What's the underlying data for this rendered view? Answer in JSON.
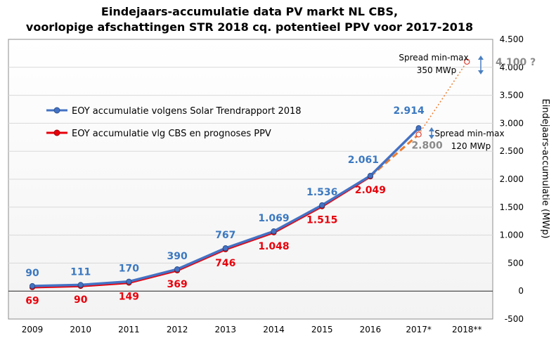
{
  "chart_data": {
    "type": "line",
    "title": [
      "Eindejaars-accumulatie  data PV markt NL CBS,",
      "voorlopige  afschattingen STR 2018 cq. potentieel PPV voor 2017-2018"
    ],
    "ylabel": "Eindejaars-accumulatie  (MWp)",
    "categories": [
      "2009",
      "2010",
      "2011",
      "2012",
      "2013",
      "2014",
      "2015",
      "2016",
      "2017*",
      "2018**"
    ],
    "ylim": [
      -500,
      4500
    ],
    "yticks": [
      -500,
      0,
      500,
      1000,
      1500,
      2000,
      2500,
      3000,
      3500,
      4000,
      4500
    ],
    "ytick_labels": [
      "-500",
      "0",
      "500",
      "1.000",
      "1.500",
      "2.000",
      "2.500",
      "3.000",
      "3.500",
      "4.000",
      "4.500"
    ],
    "grid": true,
    "legend_position": "top-left",
    "series": [
      {
        "name": "EOY accumulatie volgens Solar Trendrapport 2018",
        "color": "#4472c4",
        "values": [
          90,
          111,
          170,
          390,
          767,
          1069,
          1536,
          2061,
          2914,
          null
        ],
        "labels": [
          "90",
          "111",
          "170",
          "390",
          "767",
          "1.069",
          "1.536",
          "2.061",
          "2.914",
          ""
        ]
      },
      {
        "name": "EOY accumulatie vlg CBS en prognoses PPV",
        "color": "#e8000b",
        "values": [
          69,
          90,
          149,
          369,
          746,
          1048,
          1515,
          2049,
          null,
          null
        ],
        "labels": [
          "69",
          "90",
          "149",
          "369",
          "746",
          "1.048",
          "1.515",
          "2.049",
          "",
          ""
        ]
      }
    ],
    "projections": [
      {
        "from_x": "2016",
        "from_y": 2049,
        "to_x": "2017*",
        "to_y": 2800,
        "label": "2.800",
        "color": "#ed7d31",
        "style": "dashed"
      },
      {
        "from_x": "2017*",
        "from_y": 2800,
        "to_x": "2018**",
        "to_y": 4100,
        "label": "4.100 ?",
        "color": "#ed7d31",
        "style": "dotted"
      }
    ],
    "annotations": [
      {
        "lines": [
          "Spread min-max",
          "350 MWp"
        ],
        "at_x": "2018**"
      },
      {
        "lines": [
          "Spread min-max",
          "120 MWp"
        ],
        "at_x": "2017*"
      }
    ]
  }
}
